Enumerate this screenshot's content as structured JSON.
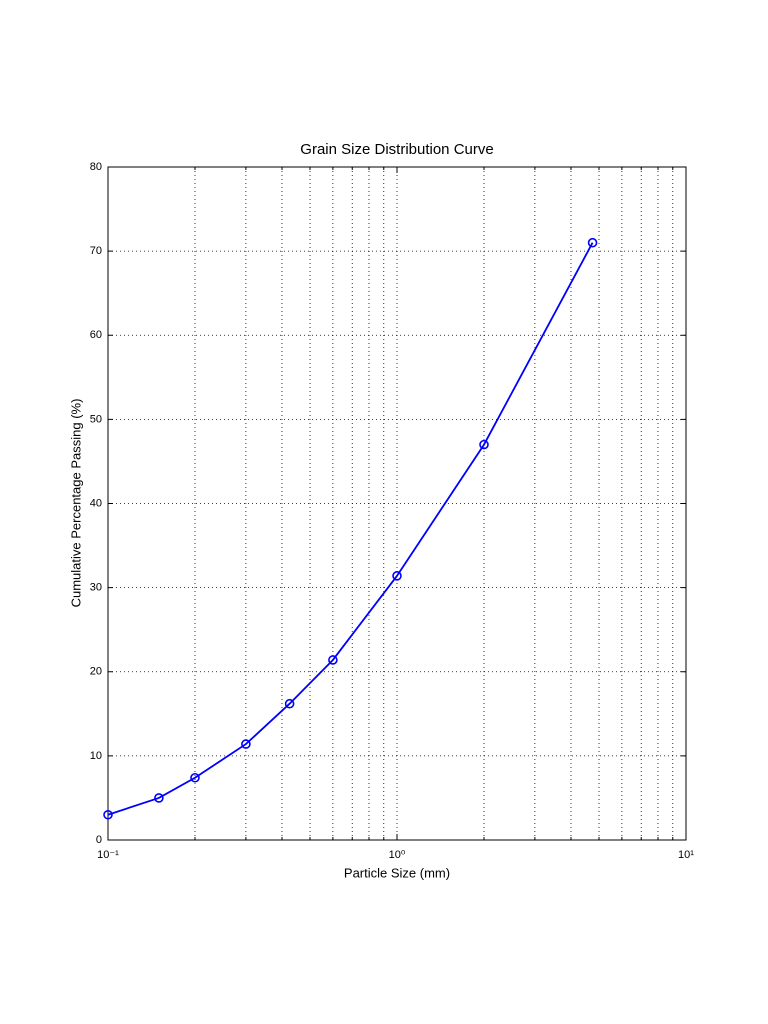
{
  "chart_data": {
    "type": "line",
    "title": "Grain Size Distribution Curve",
    "x_label": "Particle Size (mm)",
    "y_label": "Cumulative Percentage Passing (%)",
    "x": [
      0.1,
      0.15,
      0.2,
      0.3,
      0.425,
      0.6,
      1.0,
      2.0,
      4.75
    ],
    "values": [
      3,
      5,
      7.4,
      11.4,
      16.2,
      21.4,
      31.4,
      47,
      71
    ],
    "color": "#0000ff",
    "marker": "circle",
    "x_scale": "log",
    "xlim": [
      0.1,
      10
    ],
    "xticks": [
      {
        "value": 0.1,
        "label": "10⁻¹"
      },
      {
        "value": 1,
        "label": "10⁰"
      },
      {
        "value": 10,
        "label": "10¹"
      }
    ],
    "xminorticks": [
      0.2,
      0.3,
      0.4,
      0.5,
      0.6,
      0.7,
      0.8,
      0.9,
      2,
      3,
      4,
      5,
      6,
      7,
      8,
      9
    ],
    "ylim": [
      0,
      80
    ],
    "yticks": [
      0,
      10,
      20,
      30,
      40,
      50,
      60,
      70,
      80
    ],
    "grid": true
  }
}
